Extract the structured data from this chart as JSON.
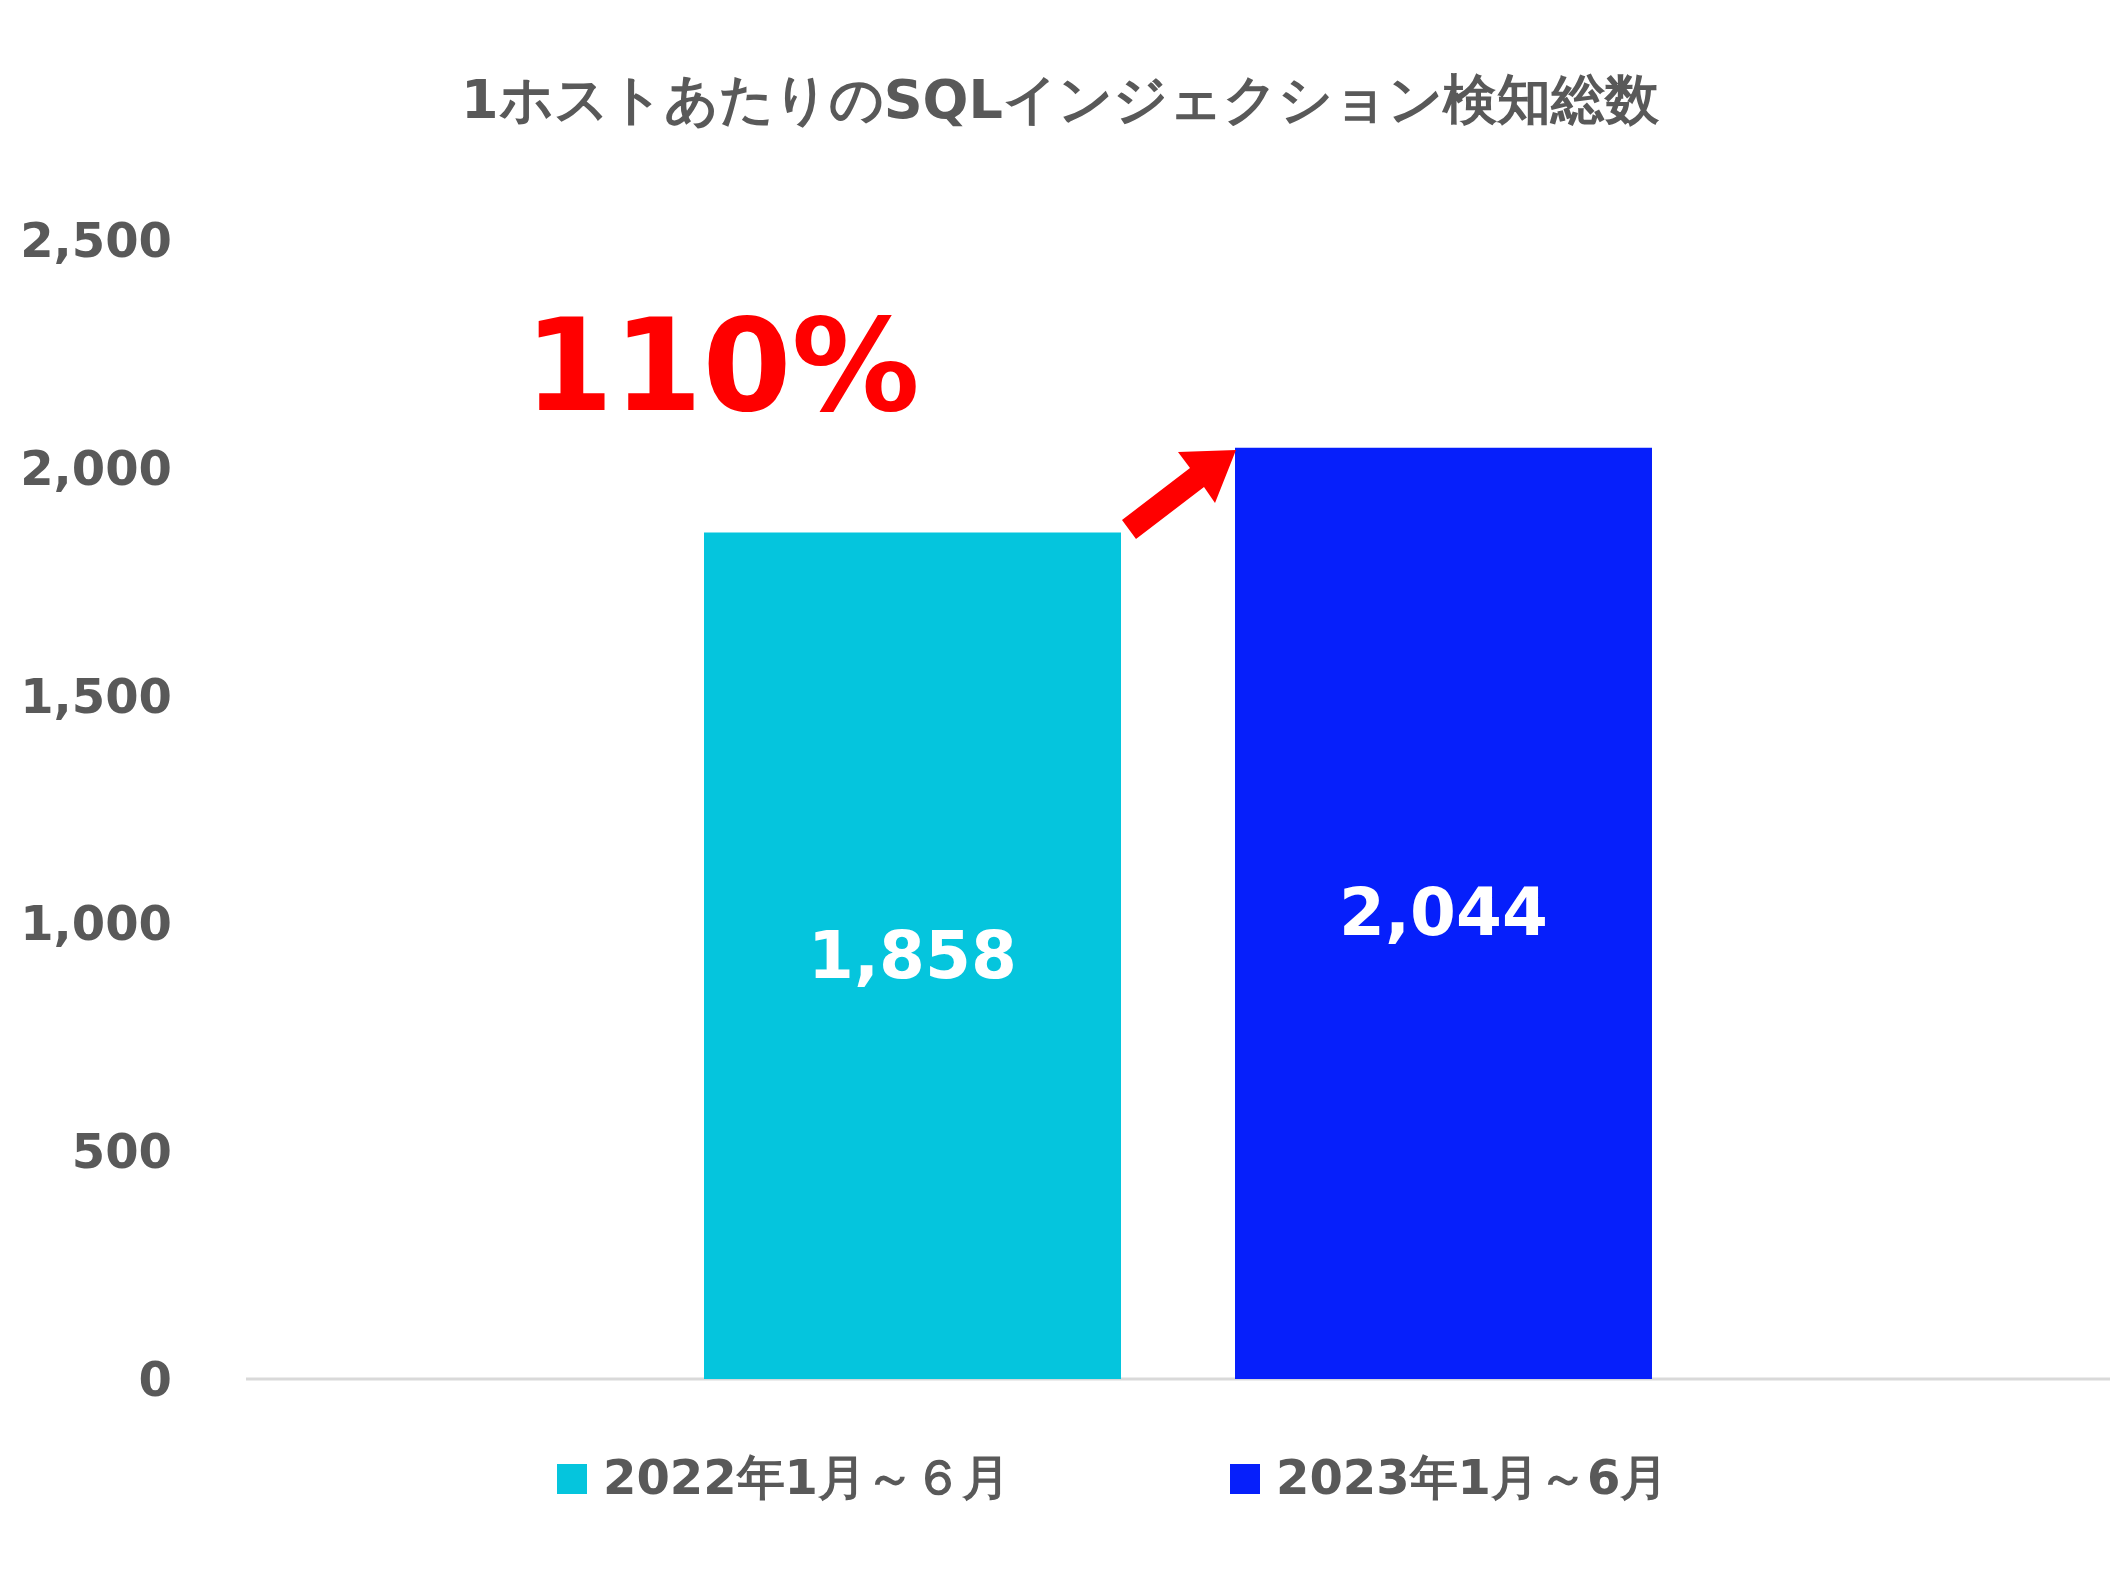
{
  "chart_data": {
    "type": "bar",
    "title": "1ホストあたりのSQLインジェクション検知総数",
    "categories": [
      null
    ],
    "series": [
      {
        "name": "2022年1月～６月",
        "color": "#05c5dd",
        "values": [
          1858
        ],
        "value_labels": [
          "1,858"
        ]
      },
      {
        "name": "2023年1月～6月",
        "color": "#061ffb",
        "values": [
          2044
        ],
        "value_labels": [
          "2,044"
        ]
      }
    ],
    "ylim": [
      0,
      2500
    ],
    "yticks": [
      {
        "value": 0,
        "label": "0"
      },
      {
        "value": 500,
        "label": "500"
      },
      {
        "value": 1000,
        "label": "1,000"
      },
      {
        "value": 1500,
        "label": "1,500"
      },
      {
        "value": 2000,
        "label": "2,000"
      },
      {
        "value": 2500,
        "label": "2,500"
      }
    ],
    "grid": false,
    "legend": "bottom",
    "annotations": [
      "110%"
    ]
  }
}
